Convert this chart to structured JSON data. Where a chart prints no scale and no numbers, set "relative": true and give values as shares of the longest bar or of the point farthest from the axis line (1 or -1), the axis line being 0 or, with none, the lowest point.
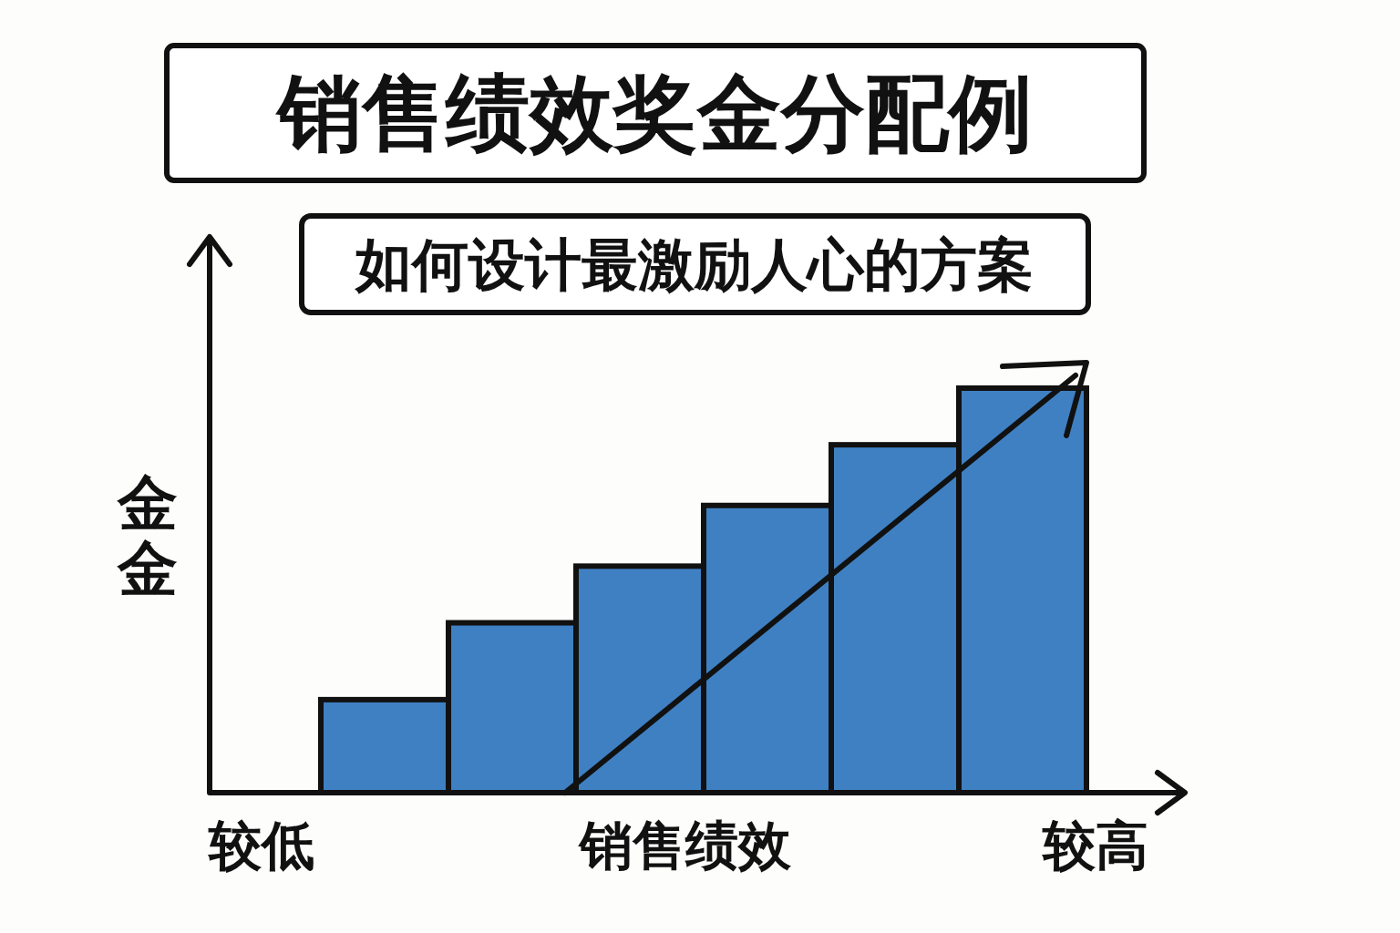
{
  "chart_data": {
    "type": "bar",
    "title": "销售绩效奖金分配例",
    "subtitle": "如何设计最激励人心的方案",
    "xlabel": "销售绩效",
    "ylabel": "金金",
    "categories": [
      null,
      null,
      null,
      null,
      null,
      null
    ],
    "values": [
      0.23,
      0.42,
      0.56,
      0.71,
      0.86,
      1
    ],
    "color": "#3f80c2",
    "relative": true,
    "annotations": [
      "较低",
      "较高"
    ]
  }
}
